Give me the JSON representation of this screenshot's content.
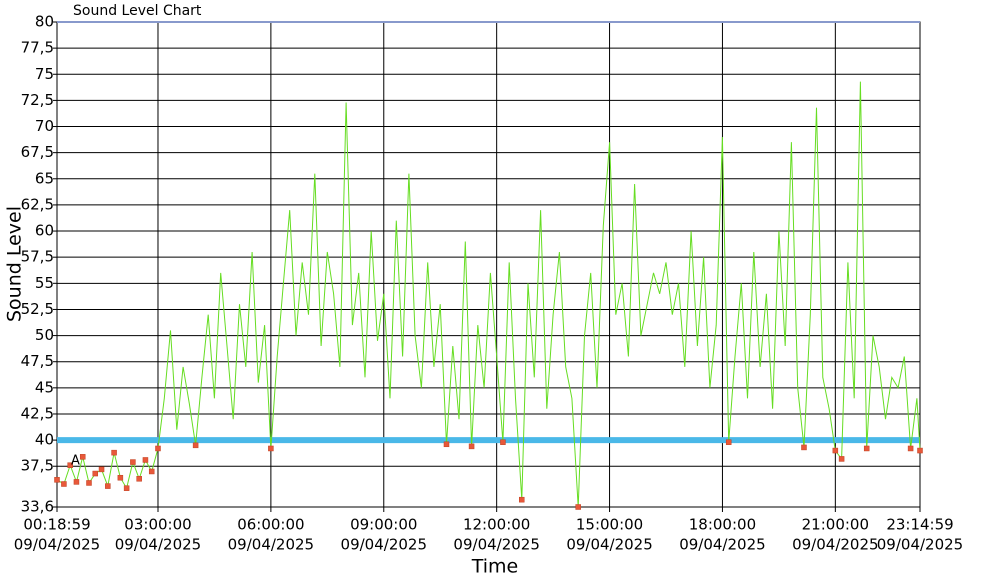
{
  "chart_data": {
    "type": "line",
    "title": "Sound Level Chart",
    "y_label": "Sound Level",
    "x_label": "Time",
    "x_date": "09/04/2025",
    "annotation": "A",
    "color": "#66dd22",
    "marker_color": "#e8583a",
    "threshold": 40,
    "threshold_color": "#4ab8e8",
    "grid": true,
    "x": [
      "00:18:59",
      "00:30:00",
      "00:40:00",
      "00:50:00",
      "01:00:00",
      "01:10:00",
      "01:20:00",
      "01:30:00",
      "01:40:00",
      "01:50:00",
      "02:00:00",
      "02:10:00",
      "02:20:00",
      "02:30:00",
      "02:40:00",
      "02:50:00",
      "03:00:00",
      "03:10:00",
      "03:20:00",
      "03:30:00",
      "03:40:00",
      "03:50:00",
      "04:00:00",
      "04:10:00",
      "04:20:00",
      "04:30:00",
      "04:40:00",
      "04:50:00",
      "05:00:00",
      "05:10:00",
      "05:20:00",
      "05:30:00",
      "05:40:00",
      "05:50:00",
      "06:00:00",
      "06:10:00",
      "06:20:00",
      "06:30:00",
      "06:40:00",
      "06:50:00",
      "07:00:00",
      "07:10:00",
      "07:20:00",
      "07:30:00",
      "07:40:00",
      "07:50:00",
      "08:00:00",
      "08:10:00",
      "08:20:00",
      "08:30:00",
      "08:40:00",
      "08:50:00",
      "09:00:00",
      "09:10:00",
      "09:20:00",
      "09:30:00",
      "09:40:00",
      "09:50:00",
      "10:00:00",
      "10:10:00",
      "10:20:00",
      "10:30:00",
      "10:40:00",
      "10:50:00",
      "11:00:00",
      "11:10:00",
      "11:20:00",
      "11:30:00",
      "11:40:00",
      "11:50:00",
      "12:00:00",
      "12:10:00",
      "12:20:00",
      "12:30:00",
      "12:40:00",
      "12:50:00",
      "13:00:00",
      "13:10:00",
      "13:20:00",
      "13:30:00",
      "13:40:00",
      "13:50:00",
      "14:00:00",
      "14:10:00",
      "14:20:00",
      "14:30:00",
      "14:40:00",
      "14:50:00",
      "15:00:00",
      "15:10:00",
      "15:20:00",
      "15:30:00",
      "15:40:00",
      "15:50:00",
      "16:00:00",
      "16:10:00",
      "16:20:00",
      "16:30:00",
      "16:40:00",
      "16:50:00",
      "17:00:00",
      "17:10:00",
      "17:20:00",
      "17:30:00",
      "17:40:00",
      "17:50:00",
      "18:00:00",
      "18:10:00",
      "18:20:00",
      "18:30:00",
      "18:40:00",
      "18:50:00",
      "19:00:00",
      "19:10:00",
      "19:20:00",
      "19:30:00",
      "19:40:00",
      "19:50:00",
      "20:00:00",
      "20:10:00",
      "20:20:00",
      "20:30:00",
      "20:40:00",
      "20:50:00",
      "21:00:00",
      "21:10:00",
      "21:20:00",
      "21:30:00",
      "21:40:00",
      "21:50:00",
      "22:00:00",
      "22:10:00",
      "22:20:00",
      "22:30:00",
      "22:40:00",
      "22:50:00",
      "23:00:00",
      "23:10:00",
      "23:14:59"
    ],
    "values": [
      36.2,
      35.8,
      37.6,
      36.0,
      38.4,
      35.9,
      36.8,
      37.2,
      35.6,
      38.8,
      36.4,
      35.4,
      37.9,
      36.3,
      38.1,
      37.0,
      39.2,
      44,
      50.5,
      41,
      47,
      43.5,
      39.5,
      46,
      52,
      44,
      56,
      49,
      42,
      53,
      47,
      58,
      45.5,
      51,
      39.2,
      48,
      55,
      62,
      50,
      57,
      52,
      65.5,
      49,
      58,
      54,
      47,
      72.3,
      51,
      56,
      46,
      60,
      49.5,
      54,
      44,
      61,
      48,
      65.5,
      50,
      45,
      57,
      47,
      53,
      39.6,
      49,
      42,
      59,
      39.4,
      51,
      45,
      56,
      48,
      39.8,
      57,
      44,
      34.3,
      55,
      46,
      62,
      43,
      52,
      58,
      47,
      44,
      33.6,
      50,
      56,
      45,
      60.5,
      68.5,
      52,
      55,
      48,
      64.5,
      50,
      53,
      56,
      54,
      57,
      52,
      55,
      47,
      60,
      49,
      57.5,
      45,
      51,
      69,
      39.8,
      48,
      55,
      44,
      58,
      47,
      54,
      43,
      60,
      49,
      68.5,
      45,
      39.3,
      52,
      71.8,
      46,
      43,
      39,
      38.2,
      57,
      44,
      74.3,
      39.2,
      50,
      47,
      42,
      46,
      45,
      48,
      39.2,
      44,
      39.0
    ],
    "xlim": [
      "00:18:59",
      "23:14:59"
    ],
    "xticks": [
      "00:18:59",
      "03:00:00",
      "06:00:00",
      "09:00:00",
      "12:00:00",
      "15:00:00",
      "18:00:00",
      "21:00:00",
      "23:14:59"
    ],
    "ylim": [
      33.6,
      80
    ],
    "yticks": [
      {
        "value": 33.6,
        "label": "33,6"
      },
      {
        "value": 37.5,
        "label": "37,5"
      },
      40,
      {
        "value": 42.5,
        "label": "42,5"
      },
      45,
      {
        "value": 47.5,
        "label": "47,5"
      },
      50,
      {
        "value": 52.5,
        "label": "52,5"
      },
      55,
      {
        "value": 57.5,
        "label": "57,5"
      },
      60,
      {
        "value": 62.5,
        "label": "62,5"
      },
      65,
      {
        "value": 67.5,
        "label": "67,5"
      },
      70,
      {
        "value": 72.5,
        "label": "72,5"
      },
      75,
      {
        "value": 77.5,
        "label": "77,5"
      },
      80
    ]
  }
}
